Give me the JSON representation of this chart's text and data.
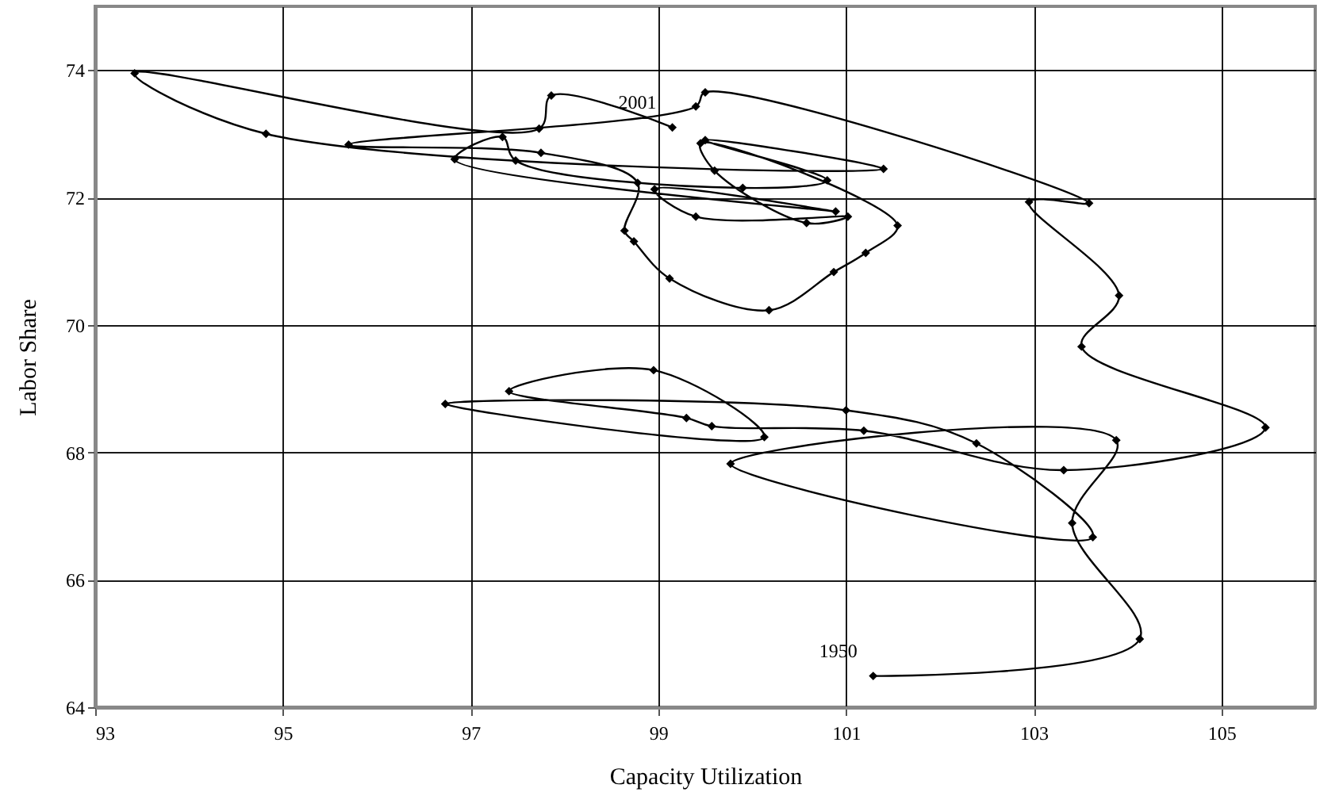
{
  "chart_data": {
    "type": "line",
    "xlabel": "Capacity Utilization",
    "ylabel": "Labor Share",
    "x": [
      101.29,
      104.13,
      103.41,
      103.88,
      99.77,
      103.63,
      102.39,
      101.0,
      96.73,
      100.13,
      98.95,
      97.41,
      99.3,
      99.57,
      101.19,
      103.32,
      105.47,
      103.51,
      103.91,
      102.95,
      103.59,
      99.5,
      99.4,
      95.7,
      97.75,
      98.78,
      98.64,
      98.74,
      99.12,
      100.18,
      100.87,
      101.21,
      101.55,
      99.45,
      99.6,
      100.58,
      101.02,
      99.4,
      98.96,
      100.89,
      96.83,
      97.34,
      97.48,
      99.9,
      100.8,
      99.5,
      101.4,
      94.82,
      93.42,
      97.73,
      97.86,
      99.15
    ],
    "series": [
      {
        "color": "#000000",
        "values": [
          64.49,
          65.07,
          66.89,
          68.19,
          67.82,
          66.67,
          68.14,
          68.66,
          68.76,
          68.24,
          69.29,
          68.96,
          68.54,
          68.41,
          68.34,
          67.72,
          68.39,
          69.66,
          70.46,
          71.93,
          71.91,
          73.65,
          73.43,
          72.83,
          72.7,
          72.23,
          71.48,
          71.31,
          70.73,
          70.23,
          70.83,
          71.13,
          71.56,
          72.85,
          72.42,
          71.6,
          71.7,
          71.7,
          72.13,
          71.78,
          72.6,
          72.95,
          72.58,
          72.15,
          72.27,
          72.9,
          72.45,
          73.0,
          73.95,
          73.08,
          73.6,
          73.1
        ]
      }
    ],
    "xlim": [
      93,
      106
    ],
    "ylim": [
      64,
      75
    ],
    "xticks": [
      93,
      95,
      97,
      99,
      101,
      103,
      105
    ],
    "yticks": [
      64,
      66,
      68,
      70,
      72,
      74
    ],
    "grid": true,
    "marker": "diamond",
    "annotations": [
      {
        "text": "1950",
        "x": 101.29,
        "y": 64.49
      },
      {
        "text": "2001",
        "x": 99.15,
        "y": 73.1
      }
    ]
  }
}
